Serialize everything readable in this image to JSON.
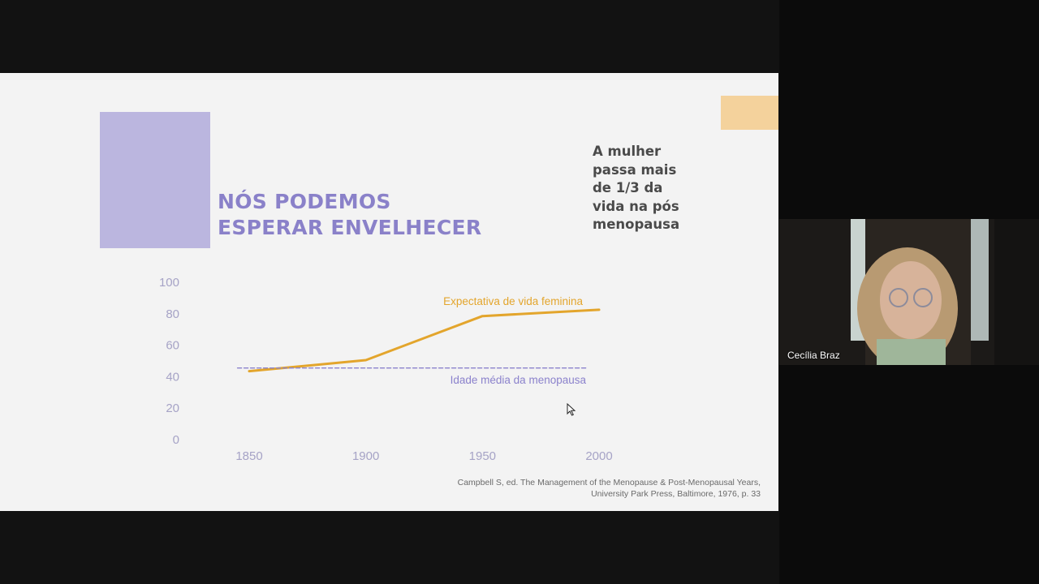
{
  "slide": {
    "title_line1": "NÓS PODEMOS",
    "title_line2": "ESPERAR ENVELHECER",
    "side_note_lines": [
      "A mulher",
      "passa mais",
      "de 1/3 da",
      "vida na pós",
      "menopausa"
    ],
    "citation_line1": "Campbell S, ed. The Management of the Menopause & Post-Menopausal Years,",
    "citation_line2": "University Park Press, Baltimore, 1976, p. 33"
  },
  "chart_data": {
    "type": "line",
    "title": "",
    "xlabel": "",
    "ylabel": "",
    "x_ticks": [
      "1850",
      "1900",
      "1950",
      "2000"
    ],
    "y_ticks": [
      "0",
      "20",
      "40",
      "60",
      "80",
      "100"
    ],
    "ylim": [
      0,
      100
    ],
    "grid": false,
    "series": [
      {
        "name": "Expectativa de vida feminina",
        "style": "solid",
        "color": "#e3a52c",
        "points": [
          [
            1850,
            43
          ],
          [
            1900,
            50
          ],
          [
            1950,
            78
          ],
          [
            2000,
            82
          ]
        ]
      },
      {
        "name": "Idade média da menopausa",
        "style": "dashed",
        "color": "#8b82cc",
        "points": [
          [
            1845,
            45
          ],
          [
            1995,
            45
          ]
        ]
      }
    ]
  },
  "participant": {
    "name": "Cecília Braz"
  }
}
